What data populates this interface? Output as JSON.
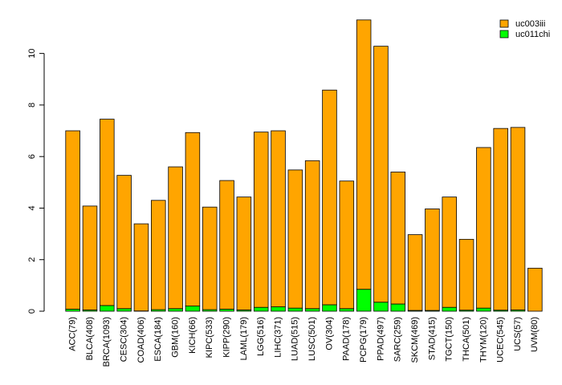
{
  "chart_data": {
    "type": "bar",
    "stacked": true,
    "categories": [
      "ACC(79)",
      "BLCA(408)",
      "BRCA(1093)",
      "CESC(304)",
      "COAD(406)",
      "ESCA(184)",
      "GBM(160)",
      "KICH(66)",
      "KIPC(533)",
      "KIPP(290)",
      "LAML(179)",
      "LGG(516)",
      "LIHC(371)",
      "LUAD(515)",
      "LUSC(501)",
      "OV(304)",
      "PAAD(178)",
      "PCPG(179)",
      "PPAD(497)",
      "SARC(259)",
      "SKCM(469)",
      "STAD(415)",
      "TGCT(150)",
      "THCA(501)",
      "THYM(120)",
      "UCEC(545)",
      "UCS(57)",
      "UVM(80)"
    ],
    "series": [
      {
        "name": "uc011chi",
        "color": "#00FF00",
        "values": [
          0.08,
          0.05,
          0.22,
          0.1,
          0.01,
          0.06,
          0.1,
          0.2,
          0.06,
          0.08,
          0.05,
          0.15,
          0.17,
          0.12,
          0.1,
          0.25,
          0.1,
          0.85,
          0.35,
          0.28,
          0.03,
          0.03,
          0.15,
          0.04,
          0.12,
          0.04,
          0.05,
          0.0
        ]
      },
      {
        "name": "uc003iii",
        "color": "#FFA500",
        "values": [
          6.92,
          4.03,
          7.23,
          5.17,
          3.38,
          4.24,
          5.5,
          6.73,
          3.98,
          4.99,
          4.38,
          6.8,
          6.83,
          5.36,
          5.74,
          8.33,
          4.95,
          10.45,
          9.93,
          5.12,
          2.94,
          3.94,
          4.28,
          2.75,
          6.23,
          7.05,
          7.08,
          1.67
        ]
      }
    ],
    "ylim": [
      0,
      11.7
    ],
    "yticks": [
      "0",
      "2",
      "4",
      "6",
      "8",
      "10"
    ],
    "legend_position": "top-right",
    "grid": false,
    "title": "",
    "xlabel": "",
    "ylabel": ""
  }
}
